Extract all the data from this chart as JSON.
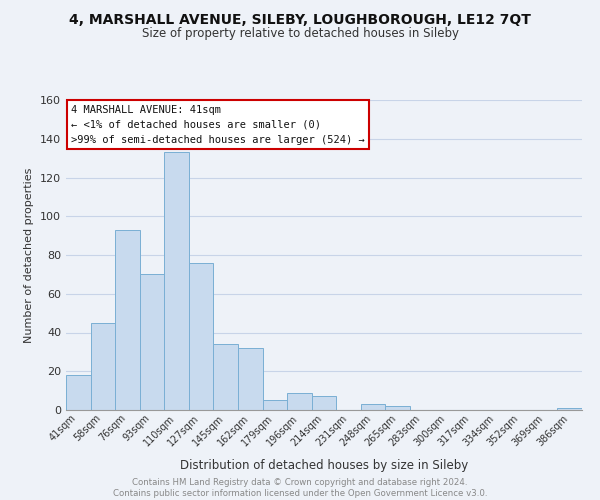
{
  "title": "4, MARSHALL AVENUE, SILEBY, LOUGHBOROUGH, LE12 7QT",
  "subtitle": "Size of property relative to detached houses in Sileby",
  "xlabel": "Distribution of detached houses by size in Sileby",
  "ylabel": "Number of detached properties",
  "bar_color": "#c8daee",
  "bar_edge_color": "#7aafd4",
  "categories": [
    "41sqm",
    "58sqm",
    "76sqm",
    "93sqm",
    "110sqm",
    "127sqm",
    "145sqm",
    "162sqm",
    "179sqm",
    "196sqm",
    "214sqm",
    "231sqm",
    "248sqm",
    "265sqm",
    "283sqm",
    "300sqm",
    "317sqm",
    "334sqm",
    "352sqm",
    "369sqm",
    "386sqm"
  ],
  "values": [
    18,
    45,
    93,
    70,
    133,
    76,
    34,
    32,
    5,
    9,
    7,
    0,
    3,
    2,
    0,
    0,
    0,
    0,
    0,
    0,
    1
  ],
  "ylim": [
    0,
    160
  ],
  "yticks": [
    0,
    20,
    40,
    60,
    80,
    100,
    120,
    140,
    160
  ],
  "annotation_box_text": [
    "4 MARSHALL AVENUE: 41sqm",
    "← <1% of detached houses are smaller (0)",
    ">99% of semi-detached houses are larger (524) →"
  ],
  "annotation_box_color": "#ffffff",
  "annotation_box_edge_color": "#cc0000",
  "footer_line1": "Contains HM Land Registry data © Crown copyright and database right 2024.",
  "footer_line2": "Contains public sector information licensed under the Open Government Licence v3.0.",
  "background_color": "#eef2f8",
  "grid_color": "#c8d4e8",
  "plot_bg_color": "#eef2f8"
}
